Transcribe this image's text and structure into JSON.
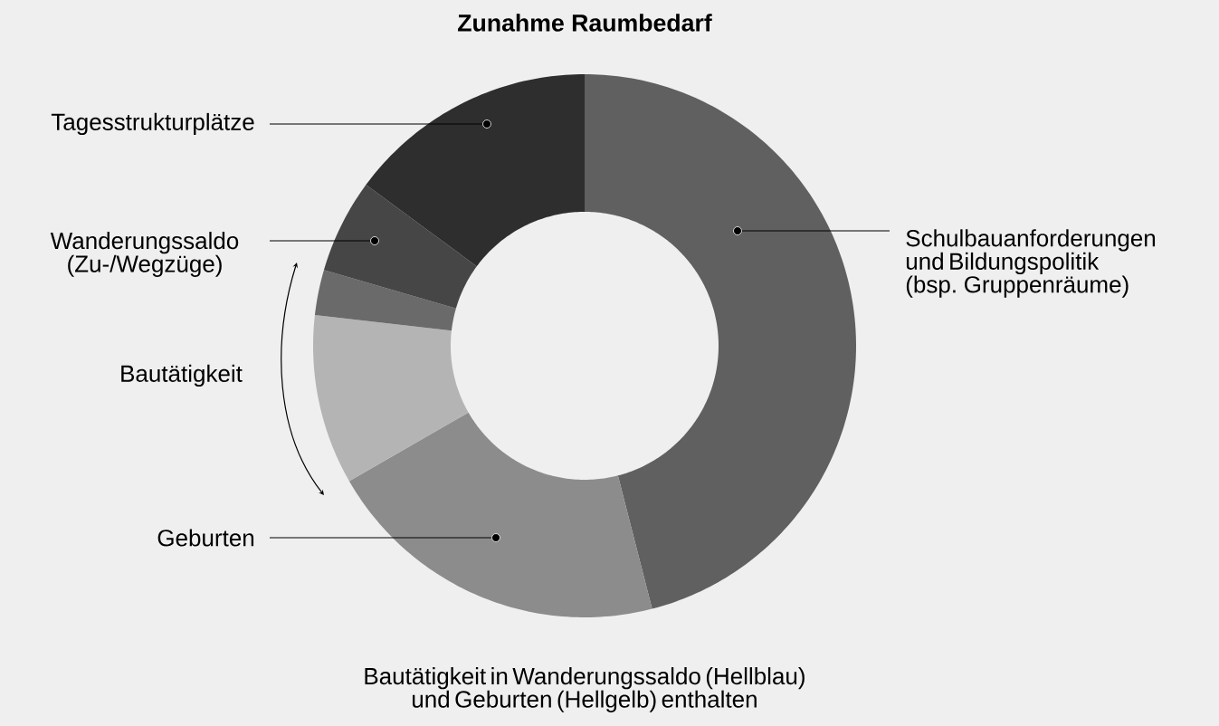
{
  "chart_data": {
    "type": "donut",
    "title": "Zunahme Raumbedarf",
    "categories": [
      "Schulbauanforderungen und Bildungspolitik (bsp. Gruppenräume)",
      "Geburten",
      null,
      null,
      "Wanderungssaldo (Zu-/Wegzüge)",
      "Tagesstrukturplätze"
    ],
    "values": [
      46,
      20.7,
      10.1,
      2.7,
      5.6,
      14.9
    ],
    "colors": [
      "#606060",
      "#8c8c8c",
      "#b4b4b4",
      "#6a6a6a",
      "#464646",
      "#2e2e2e"
    ],
    "annotations": [
      "Bautätigkeit",
      "Bautätigkeit in Wanderungssaldo (Hellblau) und Geburten (Hellgelb) enthalten"
    ]
  }
}
